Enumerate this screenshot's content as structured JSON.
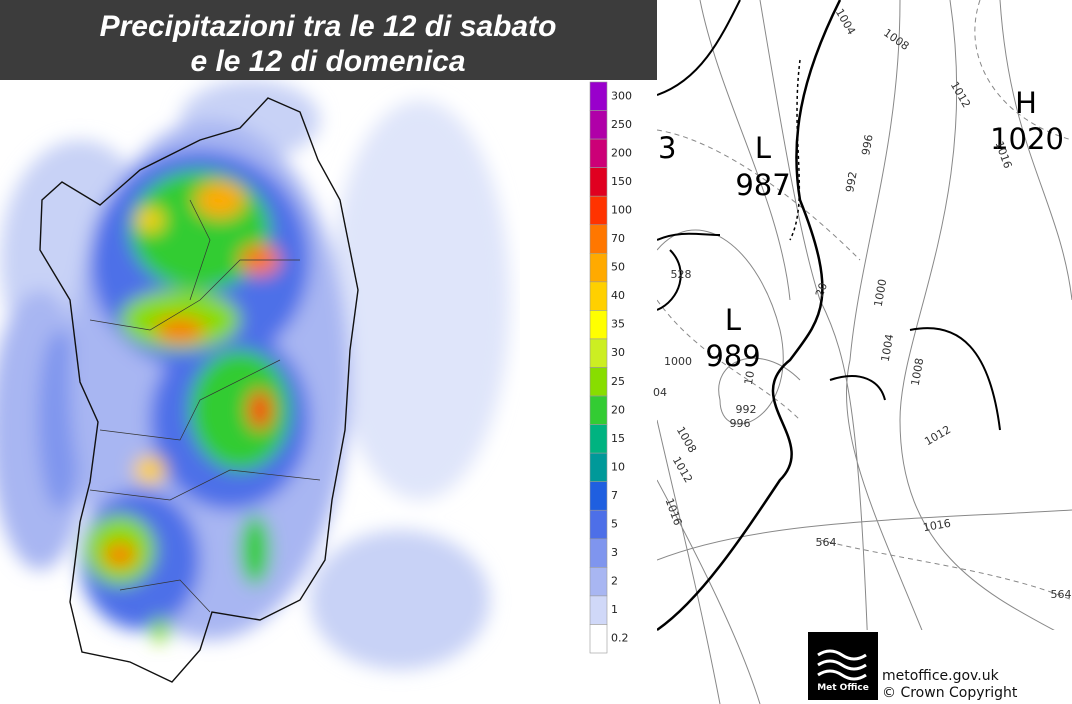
{
  "header": {
    "title_lines": [
      "Precipitazioni tra le 12 di sabato",
      "e le 12 di domenica"
    ]
  },
  "legend": {
    "items": [
      {
        "label": "300",
        "color": "#9900cc"
      },
      {
        "label": "250",
        "color": "#b000a8"
      },
      {
        "label": "200",
        "color": "#cc0077"
      },
      {
        "label": "150",
        "color": "#e00020"
      },
      {
        "label": "100",
        "color": "#ff3300"
      },
      {
        "label": "70",
        "color": "#ff7700"
      },
      {
        "label": "50",
        "color": "#ffaa00"
      },
      {
        "label": "40",
        "color": "#ffd000"
      },
      {
        "label": "35",
        "color": "#ffff00"
      },
      {
        "label": "30",
        "color": "#ccee22"
      },
      {
        "label": "25",
        "color": "#88dd00"
      },
      {
        "label": "20",
        "color": "#33cc33"
      },
      {
        "label": "15",
        "color": "#00b380"
      },
      {
        "label": "10",
        "color": "#009999"
      },
      {
        "label": "7",
        "color": "#1f5fe0"
      },
      {
        "label": "5",
        "color": "#4d6fe8"
      },
      {
        "label": "3",
        "color": "#7f95ee"
      },
      {
        "label": "2",
        "color": "#a8b6f2"
      },
      {
        "label": "1",
        "color": "#d0d8f8"
      },
      {
        "label": "0.2",
        "color": "#ffffff"
      }
    ]
  },
  "synoptic": {
    "centers": [
      {
        "type": "L",
        "value": "987"
      },
      {
        "type": "L",
        "value": "989"
      },
      {
        "type": "H",
        "value": "1020"
      }
    ],
    "partial_label": "3",
    "isobar_labels": [
      "1004",
      "1008",
      "1012",
      "1016",
      "996",
      "992",
      "1000",
      "1004",
      "1008",
      "1012",
      "1016",
      "1000",
      "1008",
      "1012",
      "1016",
      "992",
      "996",
      "528",
      "564",
      "564",
      "04",
      "10",
      "20"
    ]
  },
  "credits": {
    "logo": "Met Office",
    "site": "metoffice.gov.uk",
    "copyright": "© Crown Copyright"
  }
}
